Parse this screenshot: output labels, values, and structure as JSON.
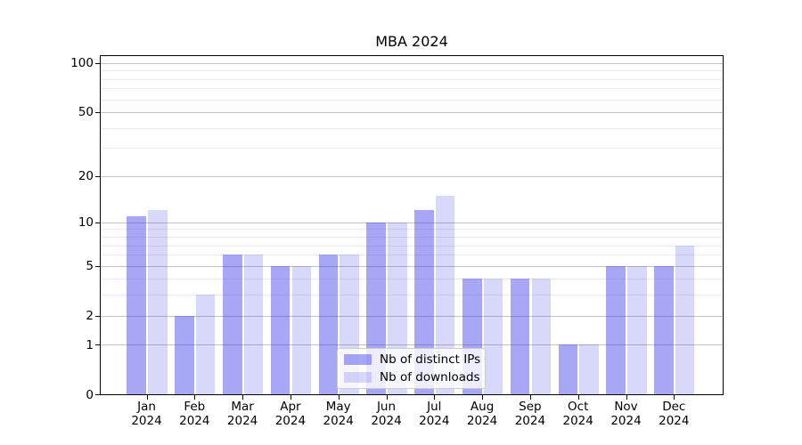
{
  "figure": {
    "background": "#ffffff"
  },
  "chart_data": {
    "type": "bar",
    "title": "MBA 2024",
    "categories": [
      "Jan 2024",
      "Feb 2024",
      "Mar 2024",
      "Apr 2024",
      "May 2024",
      "Jun 2024",
      "Jul 2024",
      "Aug 2024",
      "Sep 2024",
      "Oct 2024",
      "Nov 2024",
      "Dec 2024"
    ],
    "series": [
      {
        "name": "Nb of distinct IPs",
        "color": "rgba(60,60,235,0.45)",
        "color_hex": "#a7a7f3",
        "values": [
          11,
          2,
          6,
          5,
          6,
          10,
          12,
          4,
          4,
          1,
          5,
          5
        ]
      },
      {
        "name": "Nb of downloads",
        "color": "rgba(60,60,235,0.20)",
        "color_hex": "#d8d8f9",
        "values": [
          12,
          3,
          6,
          5,
          6,
          10,
          15,
          4,
          4,
          1,
          5,
          7
        ]
      }
    ],
    "xlabel": "",
    "ylabel": "",
    "y_scale": "log1p",
    "ylim": [
      0,
      110
    ],
    "y_axis": {
      "tick_values": [
        0,
        1,
        2,
        5,
        10,
        20,
        50,
        100
      ],
      "tick_labels": [
        "0",
        "1",
        "2",
        "5",
        "10",
        "20",
        "50",
        "100"
      ],
      "minor_grid_values": [
        3,
        4,
        6,
        7,
        8,
        9,
        30,
        40,
        60,
        70,
        80,
        90
      ]
    },
    "grid": {
      "major_color": "#c2c2c2",
      "minor_color": "#e9e9e9",
      "spine_color": "#000000"
    },
    "legend": {
      "position": "lower center",
      "entries": [
        "Nb of distinct IPs",
        "Nb of downloads"
      ]
    }
  }
}
